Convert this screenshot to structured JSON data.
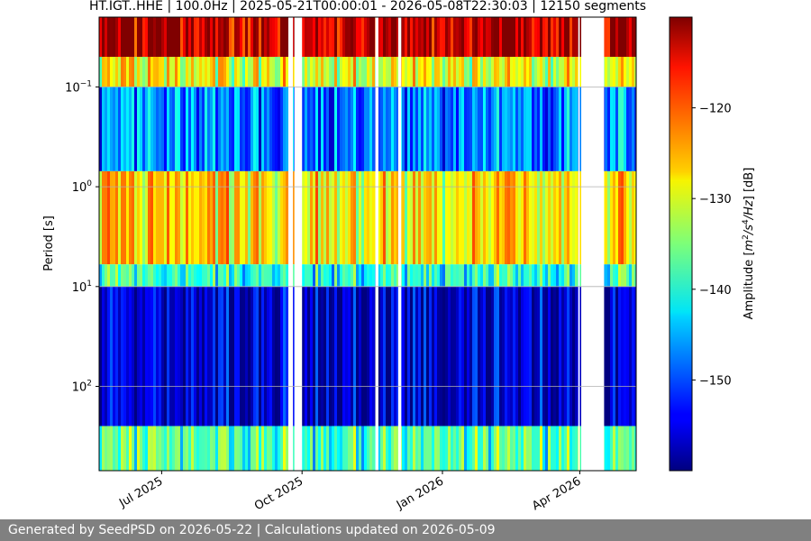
{
  "chart_data": {
    "type": "heatmap",
    "title": "HT.IGT..HHE | 100.0Hz | 2025-05-21T00:00:01 - 2026-05-08T22:30:03 | 12150 segments",
    "ylabel": "Period [s]",
    "y_scale": "log",
    "y_inverted": true,
    "ylim": [
      0.02,
      700
    ],
    "x_range": [
      "2025-05-21",
      "2026-05-08"
    ],
    "x_ticks": [
      {
        "date": "2025-07-01",
        "label": "Jul 2025"
      },
      {
        "date": "2025-10-01",
        "label": "Oct 2025"
      },
      {
        "date": "2026-01-01",
        "label": "Jan 2026"
      },
      {
        "date": "2026-04-01",
        "label": "Apr 2026"
      }
    ],
    "y_ticks": [
      {
        "value": 0.1,
        "base": "10",
        "exp": "−1"
      },
      {
        "value": 1,
        "base": "10",
        "exp": "0"
      },
      {
        "value": 10,
        "base": "10",
        "exp": "1"
      },
      {
        "value": 100,
        "base": "10",
        "exp": "2"
      }
    ],
    "grid": "horizontal",
    "colorbar": {
      "label": "Amplitude [m²/s⁴/Hz] [dB]",
      "label_parts": {
        "prefix": "Amplitude [",
        "m": "m",
        "e2": "2",
        "s": "/s",
        "e4": "4",
        "hz": "/Hz",
        "suffix": "] [dB]"
      },
      "cmap": "jet",
      "range": [
        -160,
        -110
      ],
      "ticks": [
        -120,
        -130,
        -140,
        -150
      ]
    },
    "data_gaps": [
      [
        "2025-09-22",
        "2025-09-25"
      ],
      [
        "2025-09-26",
        "2025-10-01"
      ],
      [
        "2025-11-18",
        "2025-11-20"
      ],
      [
        "2025-12-03",
        "2025-12-05"
      ],
      [
        "2026-03-31",
        "2026-04-01"
      ],
      [
        "2026-04-02",
        "2026-04-17"
      ]
    ],
    "bands": [
      {
        "period_range": [
          0.02,
          0.05
        ],
        "level_db": -113
      },
      {
        "period_range": [
          0.05,
          0.1
        ],
        "level_db": -130
      },
      {
        "period_range": [
          0.1,
          0.7
        ],
        "level_db": -148
      },
      {
        "period_range": [
          0.7,
          6
        ],
        "level_db": -128
      },
      {
        "period_range": [
          6,
          10
        ],
        "level_db": -140
      },
      {
        "period_range": [
          10,
          250
        ],
        "level_db": -157
      },
      {
        "period_range": [
          250,
          700
        ],
        "level_db": -138
      }
    ]
  },
  "footer": {
    "text": "Generated by SeedPSD on 2026-05-22 | Calculations updated on 2026-05-09",
    "bg_color": "#808080"
  }
}
